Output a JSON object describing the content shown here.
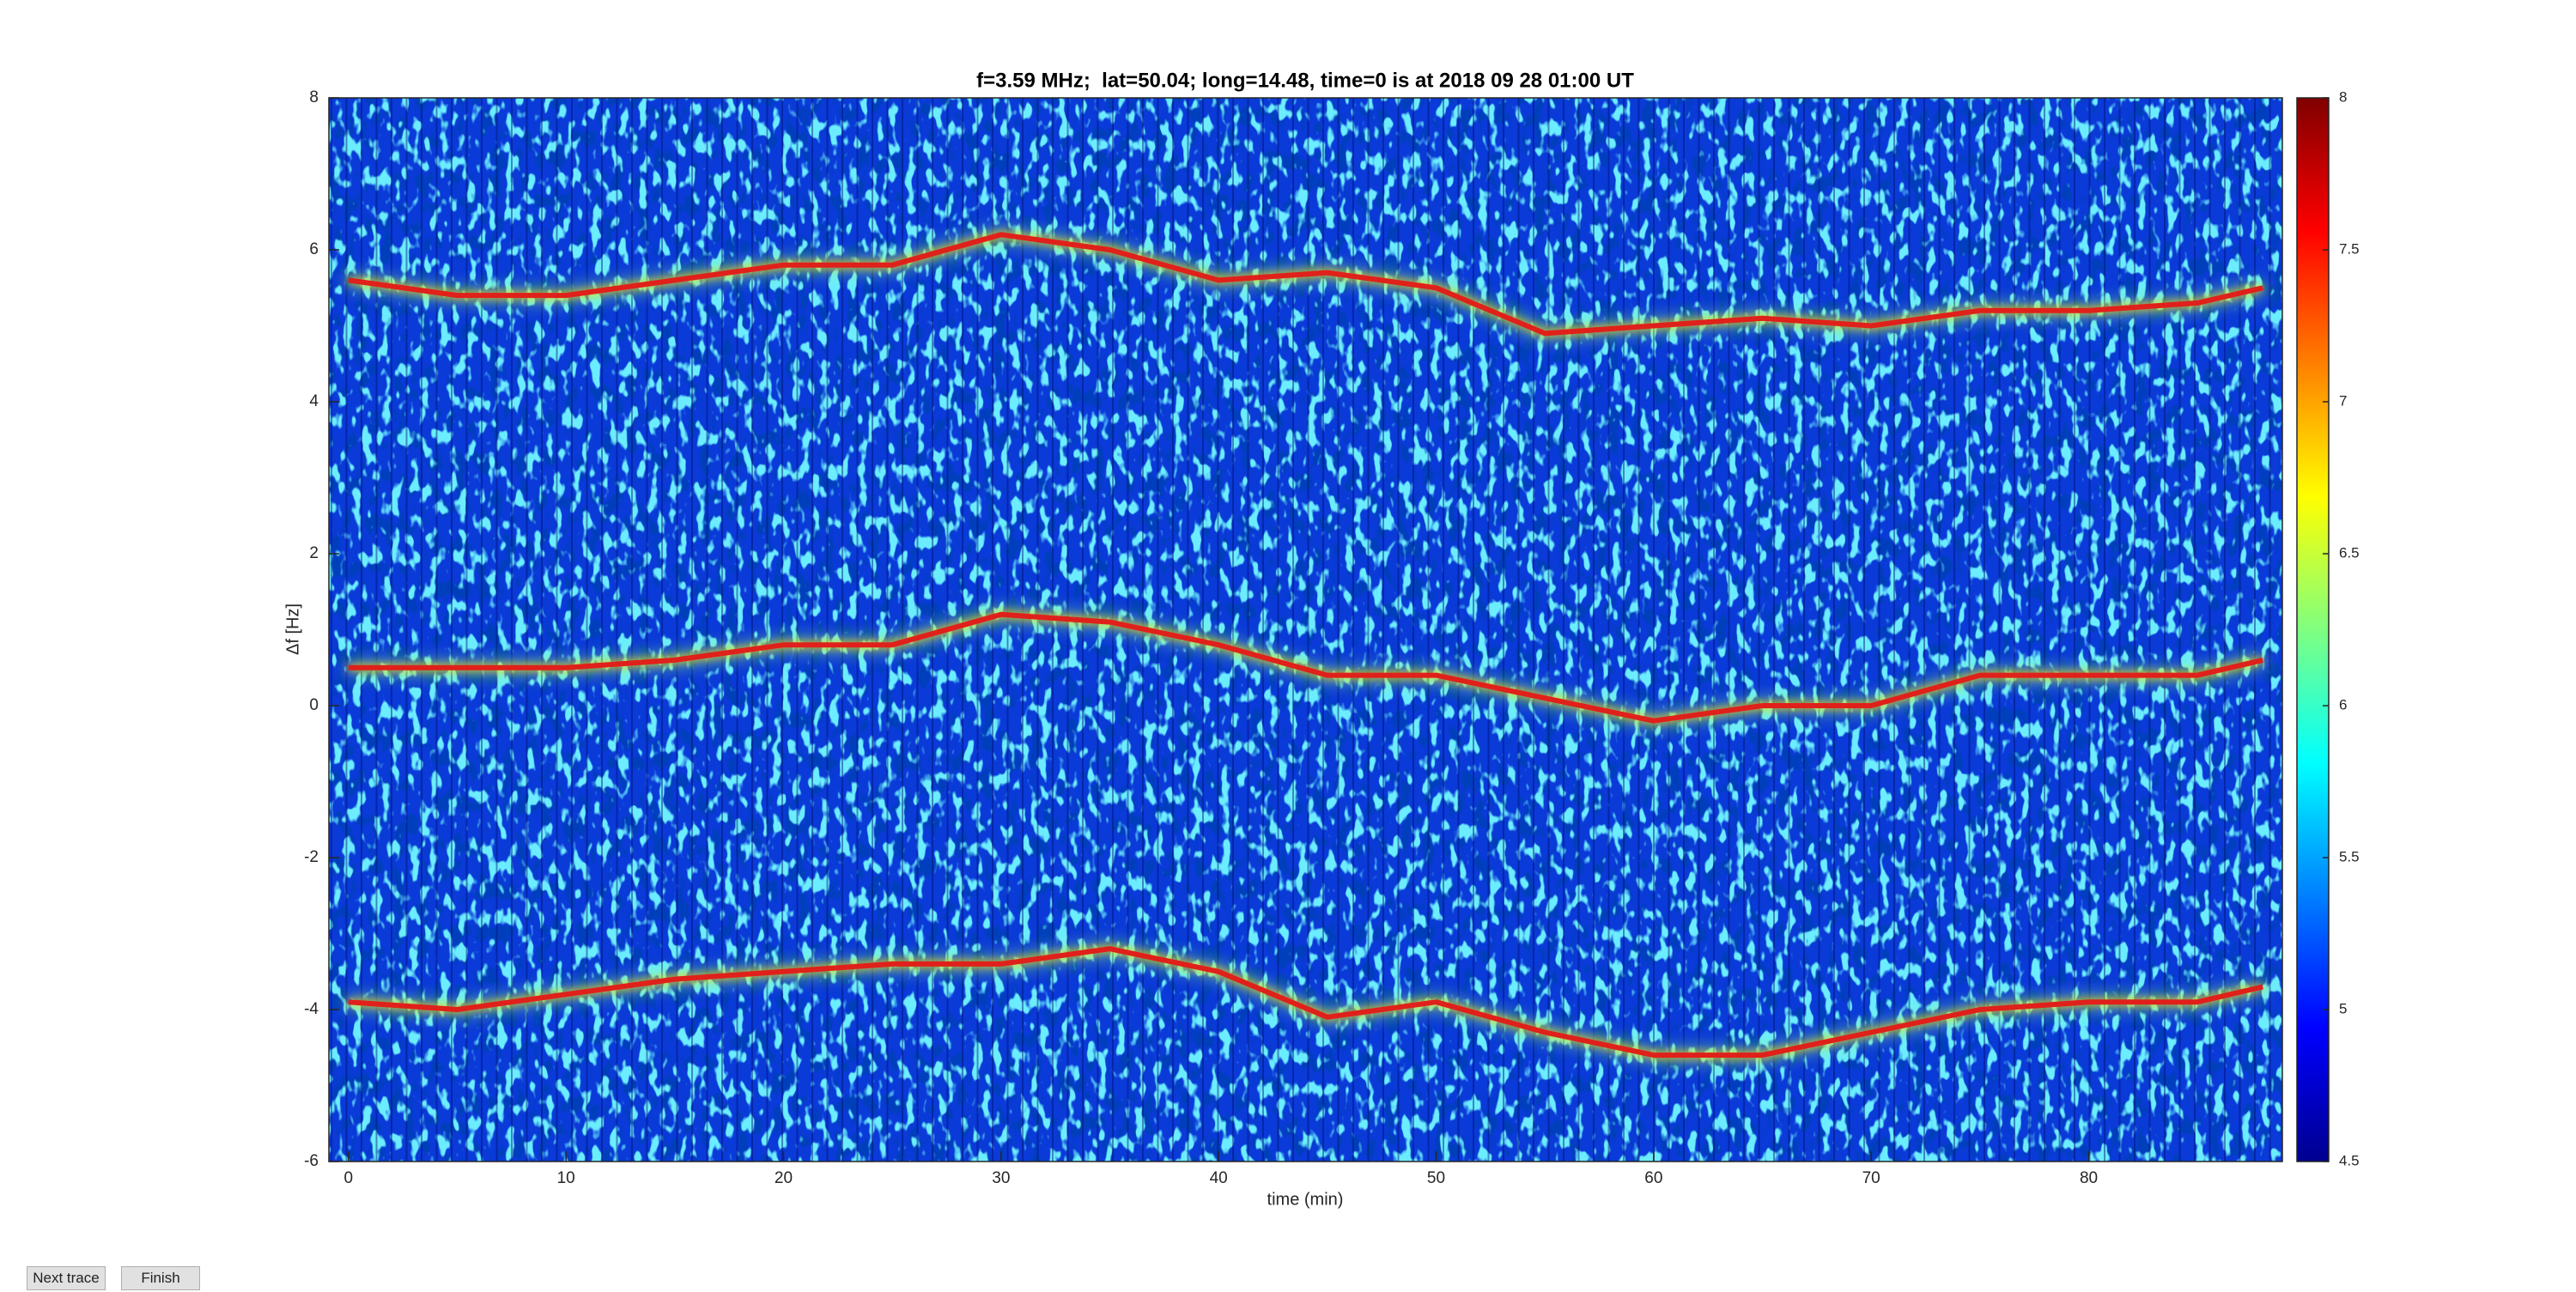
{
  "chart_data": {
    "type": "line",
    "title": "f=3.59 MHz;  lat=50.04; long=14.48, time=0 is at 2018 09 28 01:00 UT",
    "x_label": "time (min)",
    "y_label": "Δf [Hz]",
    "x": [
      0,
      5,
      10,
      15,
      20,
      25,
      30,
      35,
      40,
      45,
      50,
      55,
      60,
      65,
      70,
      75,
      80,
      85,
      88
    ],
    "series": [
      {
        "color": "#e0201a",
        "values": [
          5.6,
          5.4,
          5.4,
          5.6,
          5.8,
          5.8,
          6.2,
          6.0,
          5.6,
          5.7,
          5.5,
          4.9,
          5.0,
          5.1,
          5.0,
          5.2,
          5.2,
          5.3,
          5.5
        ]
      },
      {
        "color": "#e0201a",
        "values": [
          0.5,
          0.5,
          0.5,
          0.6,
          0.8,
          0.8,
          1.2,
          1.1,
          0.8,
          0.4,
          0.4,
          0.1,
          -0.2,
          0.0,
          0.0,
          0.4,
          0.4,
          0.4,
          0.6
        ]
      },
      {
        "color": "#e0201a",
        "values": [
          -3.9,
          -4.0,
          -3.8,
          -3.6,
          -3.5,
          -3.4,
          -3.4,
          -3.2,
          -3.5,
          -4.1,
          -3.9,
          -4.3,
          -4.6,
          -4.6,
          -4.3,
          -4.0,
          -3.9,
          -3.9,
          -3.7
        ]
      }
    ],
    "xlim": [
      -0.9,
      88.9
    ],
    "xticks": [
      0,
      10,
      20,
      30,
      40,
      50,
      60,
      70,
      80
    ],
    "ylim": [
      -6,
      8
    ],
    "yticks": [
      -6,
      -4,
      -2,
      0,
      2,
      4,
      6,
      8
    ],
    "colorbar": {
      "clim": [
        4.5,
        8
      ],
      "ticks": [
        4.5,
        5,
        5.5,
        6,
        6.5,
        7,
        7.5,
        8
      ]
    }
  },
  "buttons": [
    "Next trace",
    "Finish"
  ]
}
